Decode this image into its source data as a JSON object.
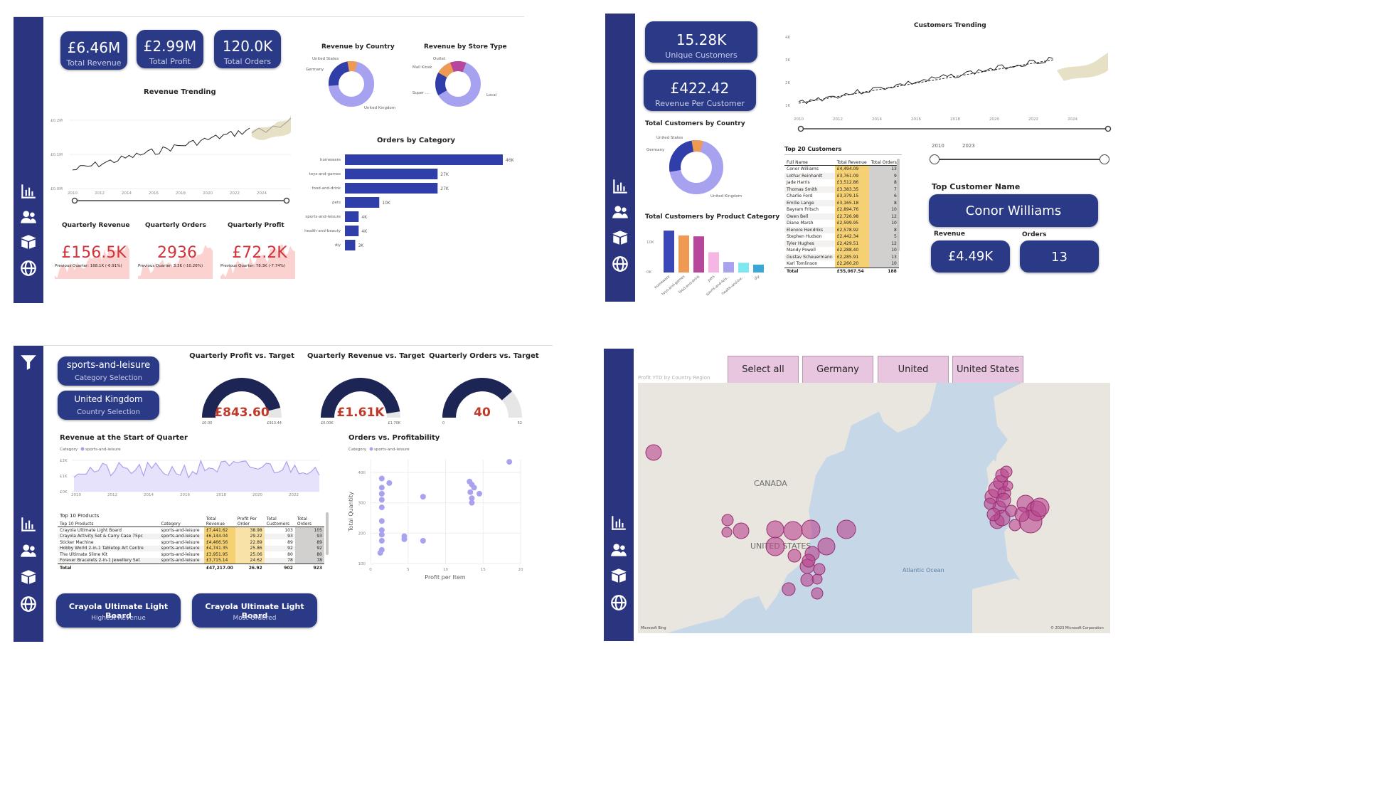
{
  "p1": {
    "kpis": [
      {
        "value": "£6.46M",
        "label": "Total Revenue"
      },
      {
        "value": "£2.99M",
        "label": "Total Profit"
      },
      {
        "value": "120.0K",
        "label": "Total Orders"
      }
    ],
    "revenue_trending": {
      "title": "Revenue Trending",
      "y_ticks": [
        "£0.2M",
        "£0.1M",
        "£0.0M"
      ],
      "x_ticks": [
        "2010",
        "2012",
        "2014",
        "2016",
        "2018",
        "2020",
        "2022",
        "2024"
      ]
    },
    "revenue_by_country": {
      "title": "Revenue by Country",
      "labels": [
        "United States",
        "Germany",
        "United Kingdom"
      ]
    },
    "revenue_by_store": {
      "title": "Revenue by Store Type",
      "labels": [
        "Outlet",
        "Mall Kiosk",
        "Super ...",
        "Local"
      ]
    },
    "orders_by_category": {
      "title": "Orders by Category",
      "categories": [
        "homeware",
        "toys-and-games",
        "food-and-drink",
        "pets",
        "sports-and-leisure",
        "health-and-beauty",
        "diy"
      ],
      "values": [
        46,
        27,
        27,
        10,
        4,
        4,
        3
      ],
      "value_labels": [
        "46K",
        "27K",
        "27K",
        "10K",
        "4K",
        "4K",
        "3K"
      ]
    },
    "quarterly": [
      {
        "title": "Quarterly Revenue",
        "value": "£156.5K",
        "sub": "Previous Quarter: 168.1K (-6.91%)"
      },
      {
        "title": "Quarterly Orders",
        "value": "2936",
        "sub": "Previous Quarter: 3.3K (-10.26%)"
      },
      {
        "title": "Quarterly Profit",
        "value": "£72.2K",
        "sub": "Previous Quarter: 78.3K (-7.74%)"
      }
    ]
  },
  "p2": {
    "kpis": [
      {
        "value": "15.28K",
        "label": "Unique Customers"
      },
      {
        "value": "£422.42",
        "label": "Revenue Per Customer"
      }
    ],
    "customers_trending": {
      "title": "Customers Trending",
      "y_ticks": [
        "4K",
        "3K",
        "2K",
        "1K"
      ],
      "x_ticks": [
        "2010",
        "2012",
        "2014",
        "2016",
        "2018",
        "2020",
        "2022",
        "2024"
      ],
      "slider_from": "2010",
      "slider_to": "2023"
    },
    "customers_by_country": {
      "title": "Total Customers by Country",
      "labels": [
        "United States",
        "Germany",
        "United Kingdom"
      ]
    },
    "customers_by_category": {
      "title": "Total Customers by Product Category",
      "y_ticks": [
        "10K",
        "0K"
      ],
      "categories": [
        "homeware",
        "toys-and-games",
        "food-and-drink",
        "pets",
        "sports-and-leis...",
        "health-and-be...",
        "diy"
      ],
      "values": [
        9.5,
        8.4,
        8.2,
        4.6,
        2.4,
        2.2,
        1.8
      ],
      "colors": [
        "#3b46b8",
        "#ef9a52",
        "#b6479a",
        "#f6b6e4",
        "#a9a2ee",
        "#7ee8f2",
        "#3ba7d4"
      ]
    },
    "top20": {
      "title": "Top 20 Customers",
      "headers": [
        "Full Name",
        "Total Revenue",
        "Total Orders"
      ],
      "rows": [
        [
          "Conor Williams",
          "£4,494.09",
          "13"
        ],
        [
          "Lothar Reinhardt",
          "£3,761.09",
          "9"
        ],
        [
          "Jade Harris",
          "£3,512.86",
          "8"
        ],
        [
          "Thomas Smith",
          "£3,383.35",
          "7"
        ],
        [
          "Charlie Ford",
          "£3,379.15",
          "6"
        ],
        [
          "Emilie Lange",
          "£3,165.18",
          "8"
        ],
        [
          "Bayram Fritsch",
          "£2,894.76",
          "10"
        ],
        [
          "Owen Bell",
          "£2,726.98",
          "12"
        ],
        [
          "Diane Marsh",
          "£2,599.95",
          "10"
        ],
        [
          "Elenore Hendriks",
          "£2,578.92",
          "8"
        ],
        [
          "Stephen Hudson",
          "£2,442.34",
          "5"
        ],
        [
          "Tyler Hughes",
          "£2,429.51",
          "12"
        ],
        [
          "Mandy Powell",
          "£2,288.40",
          "10"
        ],
        [
          "Gustav Scheuermann",
          "£2,285.91",
          "13"
        ],
        [
          "Karl Tomlinson",
          "£2,260.20",
          "10"
        ]
      ],
      "total": [
        "Total",
        "£55,067.54",
        "188"
      ]
    },
    "top_customer": {
      "title": "Top Customer Name",
      "name": "Conor Williams",
      "revenue_label": "Revenue",
      "orders_label": "Orders",
      "revenue": "£4.49K",
      "orders": "13"
    }
  },
  "p3": {
    "selections": [
      {
        "value": "sports-and-leisure",
        "label": "Category Selection"
      },
      {
        "value": "United Kingdom",
        "label": "Country Selection"
      }
    ],
    "gauges": [
      {
        "title": "Quarterly Profit vs. Target",
        "value": "£843.60",
        "min": "£0.00",
        "max": "£913.44",
        "fraction": 0.92
      },
      {
        "title": "Quarterly Revenue vs. Target",
        "value": "£1.61K",
        "min": "£0.00K",
        "max": "£1.70K",
        "fraction": 0.95
      },
      {
        "title": "Quarterly Orders vs. Target",
        "value": "40",
        "min": "0",
        "max": "52",
        "fraction": 0.77
      }
    ],
    "revenue_start": {
      "title": "Revenue at the Start of Quarter",
      "legend_label": "Category",
      "legend_item": "sports-and-leisure",
      "y_ticks": [
        "£2K",
        "£1K",
        "£0K"
      ],
      "x_ticks": [
        "2010",
        "2012",
        "2014",
        "2016",
        "2018",
        "2020",
        "2022"
      ]
    },
    "scatter": {
      "title": "Orders vs. Profitability",
      "legend_label": "Category",
      "legend_item": "sports-and-leisure",
      "xlabel": "Profit per Item",
      "ylabel": "Total Quantity",
      "x_ticks": [
        "0",
        "5",
        "10",
        "15",
        "20"
      ],
      "y_ticks": [
        "400",
        "300",
        "200",
        "100"
      ],
      "points": [
        [
          1.5,
          380
        ],
        [
          1.5,
          350
        ],
        [
          1.5,
          330
        ],
        [
          1.5,
          310
        ],
        [
          2.5,
          365
        ],
        [
          1.5,
          285
        ],
        [
          1.5,
          240
        ],
        [
          1.5,
          210
        ],
        [
          1.5,
          195
        ],
        [
          1.5,
          175
        ],
        [
          1.5,
          145
        ],
        [
          1.3,
          135
        ],
        [
          4.5,
          190
        ],
        [
          4.5,
          180
        ],
        [
          7,
          175
        ],
        [
          7,
          320
        ],
        [
          13.2,
          370
        ],
        [
          13.5,
          360
        ],
        [
          13.8,
          350
        ],
        [
          13.3,
          335
        ],
        [
          14.5,
          330
        ],
        [
          13.5,
          315
        ],
        [
          13.5,
          300
        ],
        [
          18.5,
          435
        ]
      ]
    },
    "top10": {
      "title": "Top 10 Products",
      "headers": [
        "Category",
        "Total Revenue",
        "Profit Per Order",
        "Total Customers",
        "Total Orders"
      ],
      "rows": [
        [
          "Crayola Ultimate Light Board",
          "sports-and-leisure",
          "£7,441.62",
          "38.98",
          "103",
          "105"
        ],
        [
          "Crayola Activity Set & Carry Case 75pc",
          "sports-and-leisure",
          "£6,144.04",
          "29.22",
          "93",
          "93"
        ],
        [
          "Sticker Machine",
          "sports-and-leisure",
          "£4,466.56",
          "22.89",
          "89",
          "89"
        ],
        [
          "Hobby World 2-in-1 Tabletop Art Centre",
          "sports-and-leisure",
          "£4,741.35",
          "25.86",
          "92",
          "92"
        ],
        [
          "The Ultimate Slime Kit",
          "sports-and-leisure",
          "£3,951.95",
          "25.06",
          "80",
          "80"
        ],
        [
          "Forever Bracelets 2-in-1 Jewellery Set",
          "sports-and-leisure",
          "£3,715.14",
          "24.62",
          "78",
          "78"
        ]
      ],
      "total": [
        "Total",
        "",
        "£47,217.00",
        "26.92",
        "902",
        "923"
      ]
    },
    "bottom_cards": [
      {
        "value": "Crayola Ultimate Light Board",
        "label": "Highest Revenue"
      },
      {
        "value": "Crayola Ultimate Light Board",
        "label": "Most Ordered"
      }
    ]
  },
  "p4": {
    "slicers": [
      "Select all",
      "Germany",
      "United Kingdom",
      "United States"
    ],
    "map_label": "Profit YTD by Country Region",
    "places": [
      "CANADA",
      "UNITED STATES",
      "Atlantic Ocean"
    ],
    "copyright": "© 2023 Microsoft Corporation",
    "bing": "Microsoft Bing"
  }
}
